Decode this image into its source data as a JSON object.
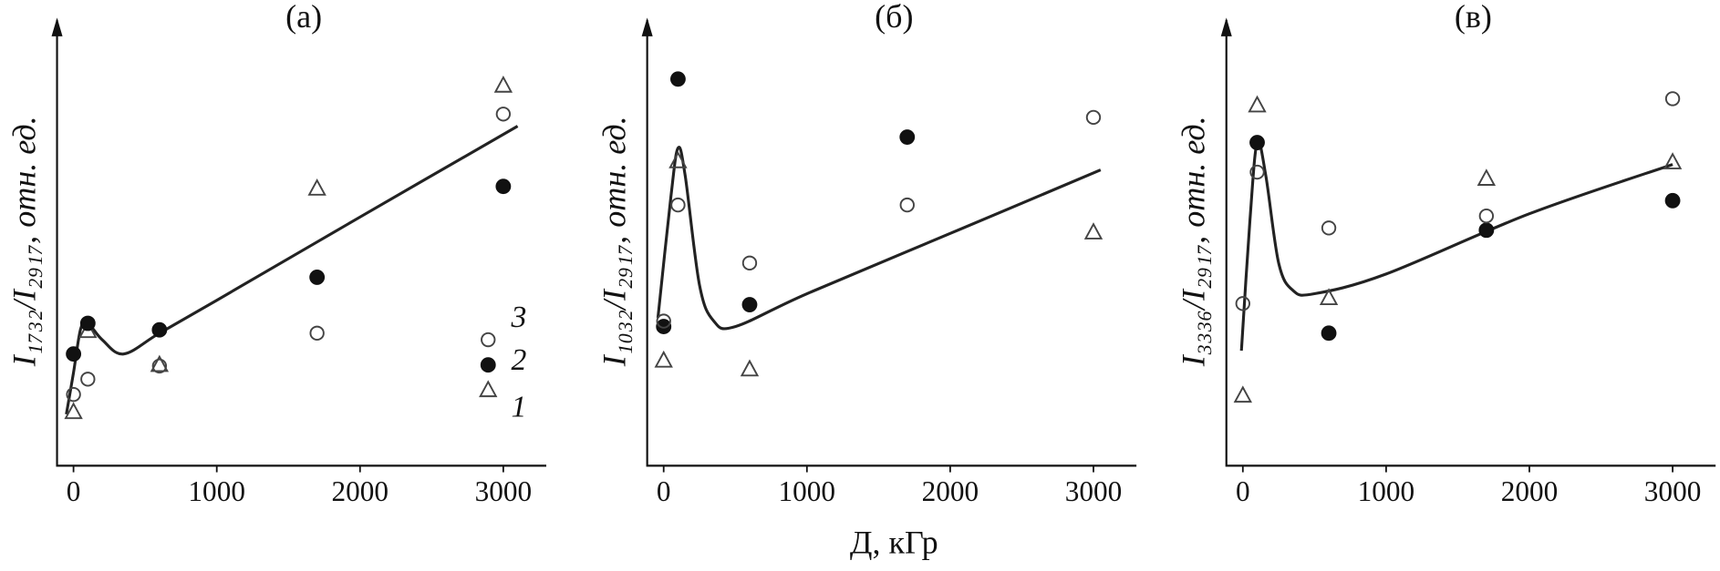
{
  "x_label": "Д, кГр",
  "chart_data": [
    {
      "type": "scatter",
      "title": "(a)",
      "y_label": "I₁₇₃₂/I₂₉₁₇, отн. ед.",
      "x": [
        0,
        100,
        600,
        1700,
        3000
      ],
      "series": [
        {
          "name": "1",
          "marker": "triangle",
          "color": "#444444",
          "values": [
            12.25,
            30.75,
            23,
            63.25,
            86.75
          ]
        },
        {
          "name": "2",
          "marker": "filled-circle",
          "color": "#111111",
          "values": [
            25.5,
            32.5,
            31,
            43,
            63.75
          ]
        },
        {
          "name": "3",
          "marker": "circle",
          "color": "#444444",
          "values": [
            16.25,
            19.75,
            22.75,
            30.25,
            80.25
          ]
        }
      ],
      "curve": {
        "color": "#222222",
        "x": [
          -50,
          0,
          50,
          100,
          200,
          350,
          600,
          1000,
          2000,
          3100
        ],
        "values": [
          11.75,
          21.25,
          31.25,
          32.5,
          28.75,
          25.5,
          30.25,
          37.75,
          56.75,
          77.5
        ]
      },
      "xlim": [
        -115,
        3300
      ],
      "xticks": [
        0,
        1000,
        2000,
        3000
      ],
      "ylim": [
        0,
        100
      ],
      "legend": "right"
    },
    {
      "type": "scatter",
      "title": "(б)",
      "y_label": "I₁₀₃₂/I₂₉₁₇, отн. ед.",
      "x": [
        0,
        100,
        600,
        1700,
        3000
      ],
      "series": [
        {
          "name": "1",
          "marker": "triangle",
          "color": "#444444",
          "values": [
            24,
            69.5,
            22,
            null,
            53.25
          ]
        },
        {
          "name": "2",
          "marker": "filled-circle",
          "color": "#111111",
          "values": [
            31.75,
            88.25,
            36.75,
            75,
            null
          ]
        },
        {
          "name": "3",
          "marker": "circle",
          "color": "#444444",
          "values": [
            33,
            59.5,
            46.25,
            59.5,
            79.5
          ]
        }
      ],
      "curve": {
        "color": "#222222",
        "x": [
          -40,
          50,
          100,
          150,
          250,
          350,
          500,
          1000,
          2000,
          3050
        ],
        "values": [
          33.75,
          61.25,
          72.5,
          66.25,
          41.25,
          33,
          31.75,
          39.25,
          53,
          67.5
        ]
      },
      "xlim": [
        -115,
        3300
      ],
      "xticks": [
        0,
        1000,
        2000,
        3000
      ],
      "ylim": [
        0,
        100
      ]
    },
    {
      "type": "scatter",
      "title": "(в)",
      "y_label": "I₃₃₃₆/I₂₉₁₇, отн. ед.",
      "x": [
        0,
        100,
        600,
        1700,
        3000
      ],
      "series": [
        {
          "name": "1",
          "marker": "triangle",
          "color": "#444444",
          "values": [
            16,
            82.25,
            38.25,
            65.5,
            69.25
          ]
        },
        {
          "name": "2",
          "marker": "filled-circle",
          "color": "#111111",
          "values": [
            null,
            73.75,
            30.25,
            53.75,
            60.5
          ]
        },
        {
          "name": "3",
          "marker": "circle",
          "color": "#444444",
          "values": [
            37,
            67,
            54.25,
            57,
            83.75
          ]
        }
      ],
      "curve": {
        "color": "#222222",
        "x": [
          -10,
          50,
          100,
          160,
          250,
          350,
          500,
          1000,
          2000,
          3000
        ],
        "values": [
          26.25,
          56.25,
          73.75,
          66.25,
          46.25,
          40,
          39.25,
          43.75,
          57.5,
          68.75
        ]
      },
      "xlim": [
        -115,
        3300
      ],
      "xticks": [
        0,
        1000,
        2000,
        3000
      ],
      "ylim": [
        0,
        100
      ]
    }
  ]
}
